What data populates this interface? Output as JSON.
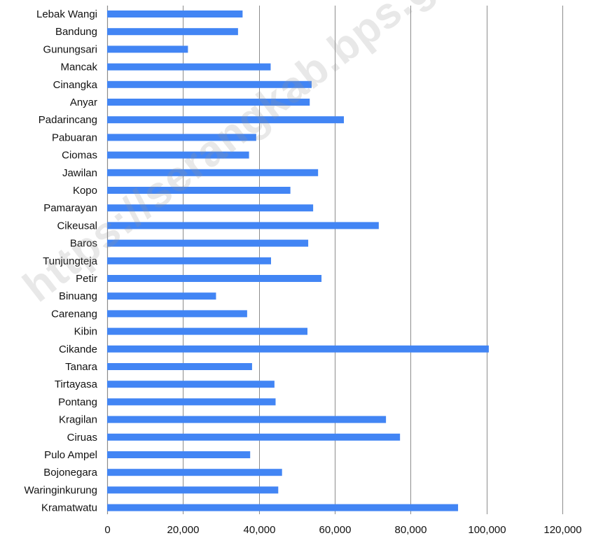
{
  "chart_data": {
    "type": "bar",
    "orientation": "horizontal",
    "categories": [
      "Lebak Wangi",
      "Bandung",
      "Gunungsari",
      "Mancak",
      "Cinangka",
      "Anyar",
      "Padarincang",
      "Pabuaran",
      "Ciomas",
      "Jawilan",
      "Kopo",
      "Pamarayan",
      "Cikeusal",
      "Baros",
      "Tunjungteja",
      "Petir",
      "Binuang",
      "Carenang",
      "Kibin",
      "Cikande",
      "Tanara",
      "Tirtayasa",
      "Pontang",
      "Kragilan",
      "Ciruas",
      "Pulo Ampel",
      "Bojonegara",
      "Waringinkurung",
      "Kramatwatu"
    ],
    "values": [
      35700,
      34500,
      21300,
      43100,
      53900,
      53400,
      62400,
      39300,
      37400,
      55600,
      48300,
      54300,
      71600,
      53000,
      43200,
      56500,
      28700,
      36900,
      52800,
      100600,
      38200,
      44100,
      44400,
      73500,
      77200,
      37700,
      46100,
      45100,
      92500
    ],
    "xlim": [
      0,
      120000
    ],
    "xticks": [
      "0",
      "20,000",
      "40,000",
      "60,000",
      "80,000",
      "100,000",
      "120,000"
    ],
    "xtick_values": [
      0,
      20000,
      40000,
      60000,
      80000,
      100000,
      120000
    ],
    "grid": "vertical",
    "bar_color": "#4285f4",
    "grid_color": "#8c8c8c",
    "title": "",
    "xlabel": "",
    "ylabel": ""
  },
  "watermark": "https://serangkab.bps.go.id"
}
